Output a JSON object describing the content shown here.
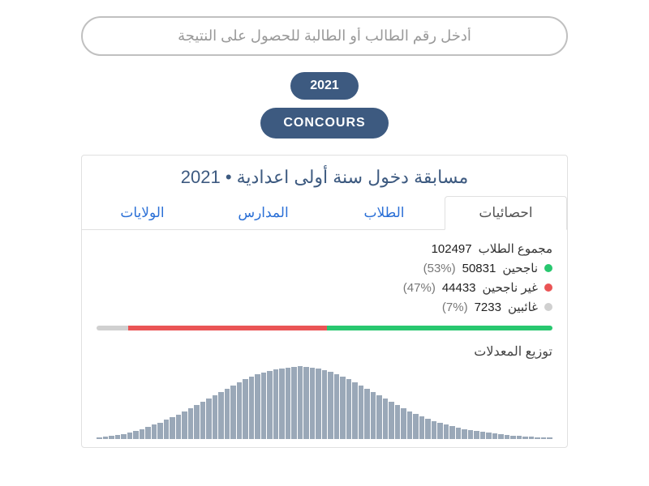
{
  "search": {
    "placeholder": "أدخل رقم الطالب أو الطالبة للحصول على النتيجة"
  },
  "year_button": "2021",
  "concours_button": "CONCOURS",
  "card": {
    "title": "مسابقة دخول سنة أولى اعدادية  •  2021",
    "tabs": {
      "stats": "احصائيات",
      "students": "الطلاب",
      "schools": "المدارس",
      "regions": "الولايات"
    },
    "stats": {
      "total": {
        "label": "مجموع الطلاب",
        "value": "102497"
      },
      "passed": {
        "label": "ناجحين",
        "value": "50831",
        "pct": "(53%)",
        "color": "#28c76f"
      },
      "failed": {
        "label": "غير ناجحين",
        "value": "44433",
        "pct": "(47%)",
        "color": "#ea5455"
      },
      "absent": {
        "label": "غائبين",
        "value": "7233",
        "pct": "(7%)",
        "color": "#d0d0d0"
      }
    },
    "progress": {
      "segments": [
        {
          "width": 7,
          "color": "#d0d0d0"
        },
        {
          "width": 43.5,
          "color": "#ea5455"
        },
        {
          "width": 49.5,
          "color": "#28c76f"
        }
      ]
    },
    "distribution": {
      "title": "توزيع المعدلات",
      "bar_color": "#9aa8b8",
      "values": [
        2,
        3,
        4,
        5,
        6,
        8,
        10,
        12,
        15,
        18,
        20,
        24,
        27,
        30,
        34,
        38,
        42,
        46,
        50,
        54,
        58,
        62,
        66,
        70,
        74,
        77,
        80,
        82,
        84,
        86,
        87,
        88,
        89,
        90,
        89,
        88,
        87,
        85,
        83,
        80,
        77,
        74,
        70,
        66,
        62,
        58,
        54,
        50,
        46,
        42,
        38,
        34,
        31,
        28,
        25,
        22,
        20,
        18,
        16,
        14,
        12,
        11,
        10,
        9,
        8,
        7,
        6,
        5,
        4,
        4,
        3,
        3,
        2,
        2,
        2
      ]
    }
  },
  "colors": {
    "pill_bg": "#3d5a80",
    "link_blue": "#2a6fd6"
  }
}
